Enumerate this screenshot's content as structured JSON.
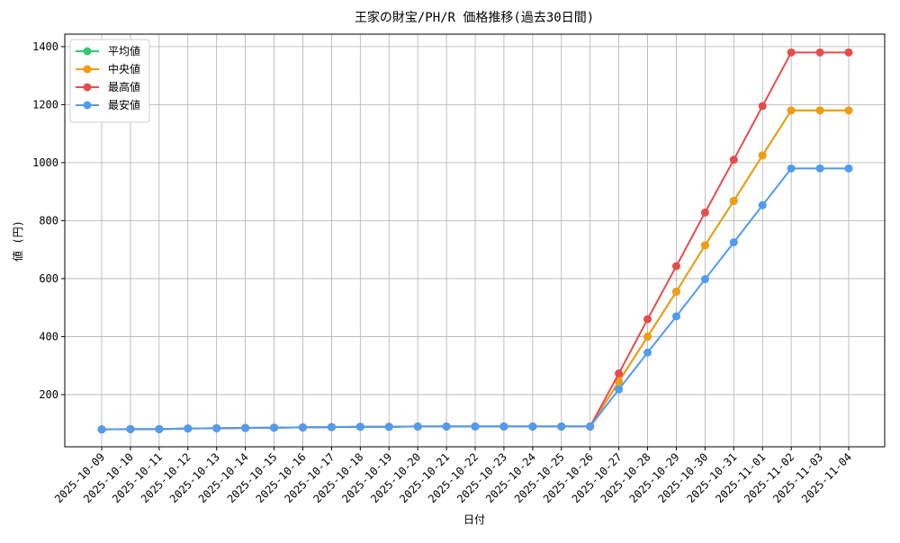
{
  "chart_data": {
    "type": "line",
    "title": "王家の財宝/PH/R 価格推移(過去30日間)",
    "x_label": "日付",
    "y_label": "値 (円)",
    "categories": [
      "2025-10-09",
      "2025-10-10",
      "2025-10-11",
      "2025-10-12",
      "2025-10-13",
      "2025-10-14",
      "2025-10-15",
      "2025-10-16",
      "2025-10-17",
      "2025-10-18",
      "2025-10-19",
      "2025-10-20",
      "2025-10-21",
      "2025-10-22",
      "2025-10-23",
      "2025-10-24",
      "2025-10-25",
      "2025-10-26",
      "2025-10-27",
      "2025-10-28",
      "2025-10-29",
      "2025-10-30",
      "2025-10-31",
      "2025-11-01",
      "2025-11-02",
      "2025-11-03",
      "2025-11-04"
    ],
    "series": [
      {
        "name": "平均値",
        "color": "#2ecc71",
        "values": [
          80,
          81,
          81,
          83,
          84,
          85,
          86,
          87,
          88,
          89,
          89,
          90,
          90,
          90,
          90,
          90,
          90,
          90,
          245,
          400,
          555,
          715,
          868,
          1025,
          1180,
          1180,
          1180
        ]
      },
      {
        "name": "中央値",
        "color": "#f39c12",
        "values": [
          80,
          81,
          81,
          83,
          84,
          85,
          86,
          87,
          88,
          89,
          89,
          90,
          90,
          90,
          90,
          90,
          90,
          90,
          245,
          400,
          555,
          715,
          868,
          1025,
          1180,
          1180,
          1180
        ]
      },
      {
        "name": "最高値",
        "color": "#e74c4c",
        "values": [
          80,
          81,
          81,
          83,
          84,
          85,
          86,
          87,
          88,
          89,
          89,
          90,
          90,
          90,
          90,
          90,
          90,
          90,
          273,
          460,
          643,
          828,
          1010,
          1195,
          1380,
          1380,
          1380
        ]
      },
      {
        "name": "最安値",
        "color": "#4f9cf0",
        "values": [
          80,
          81,
          81,
          83,
          84,
          85,
          86,
          87,
          88,
          89,
          89,
          90,
          90,
          90,
          90,
          90,
          90,
          90,
          218,
          345,
          470,
          598,
          725,
          853,
          980,
          980,
          980
        ]
      }
    ],
    "ylim": [
      20,
      1443
    ],
    "yticks": [
      200,
      400,
      600,
      800,
      1000,
      1200,
      1400
    ],
    "grid": true,
    "legend": "upper left"
  }
}
